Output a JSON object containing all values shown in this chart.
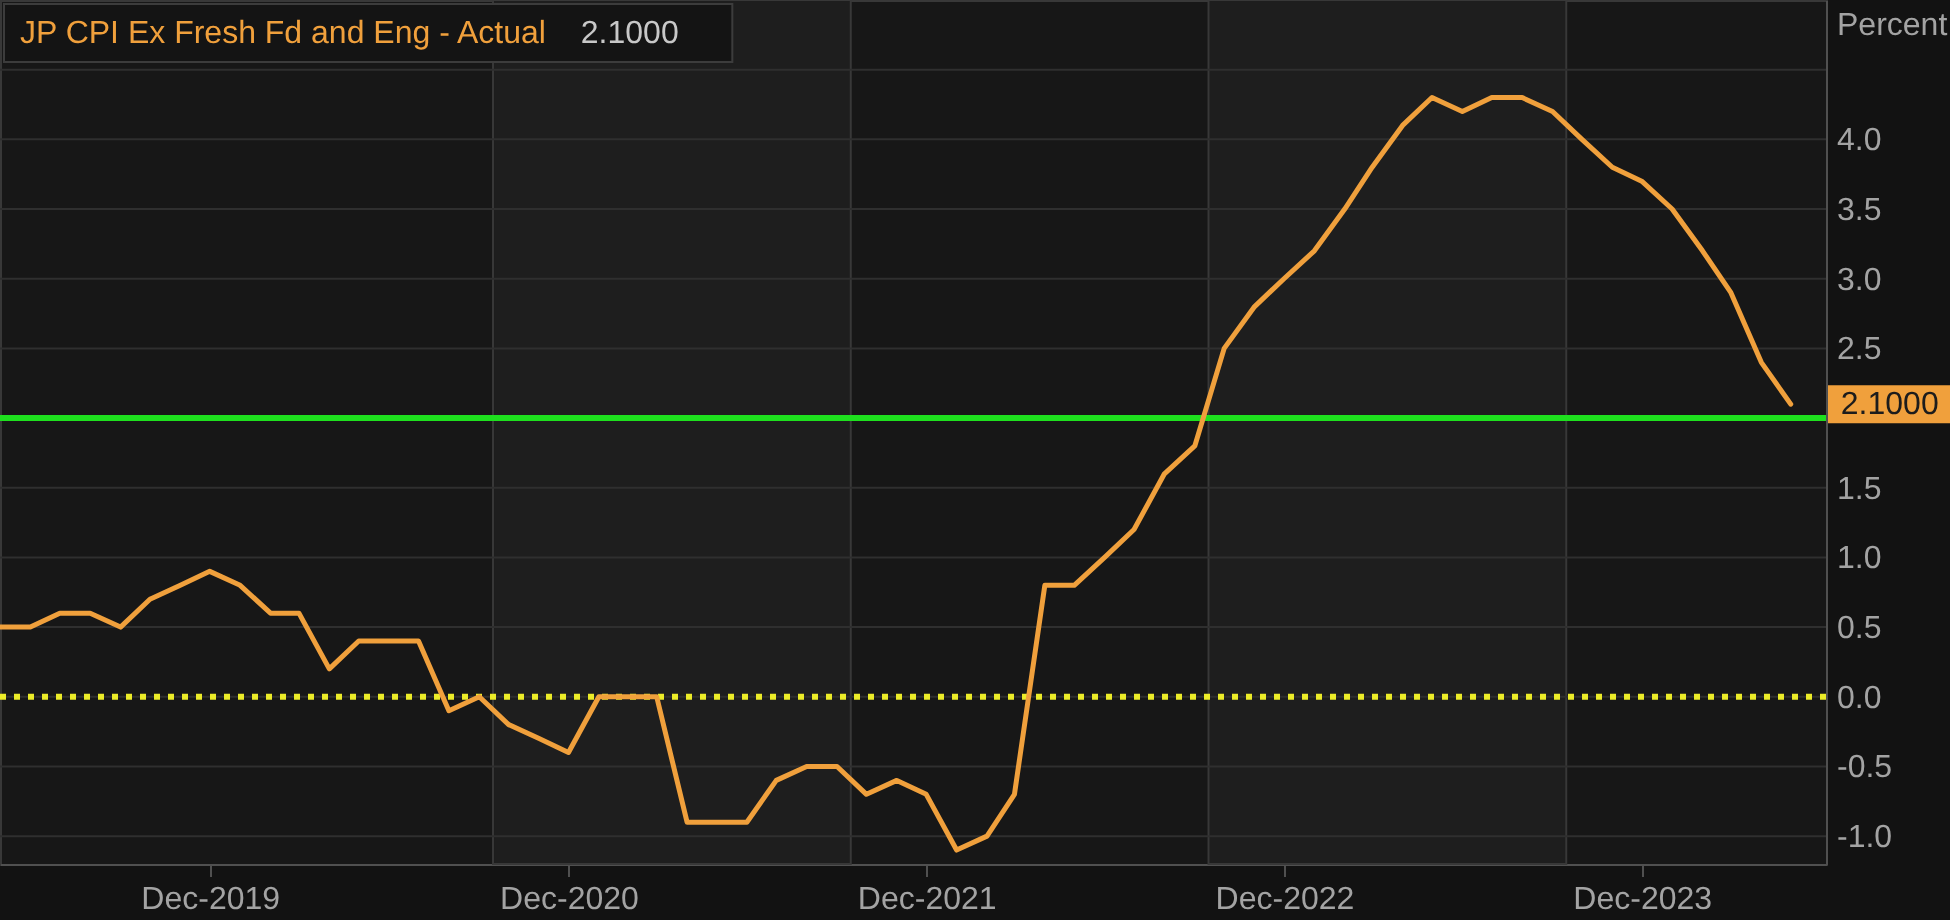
{
  "chart_data": {
    "type": "line",
    "ylabel": "Percent",
    "x": [
      "2019-05",
      "2019-06",
      "2019-07",
      "2019-08",
      "2019-09",
      "2019-10",
      "2019-11",
      "2019-12",
      "2020-01",
      "2020-02",
      "2020-03",
      "2020-04",
      "2020-05",
      "2020-06",
      "2020-07",
      "2020-08",
      "2020-09",
      "2020-10",
      "2020-11",
      "2020-12",
      "2021-01",
      "2021-02",
      "2021-03",
      "2021-04",
      "2021-05",
      "2021-06",
      "2021-07",
      "2021-08",
      "2021-09",
      "2021-10",
      "2021-11",
      "2021-12",
      "2022-01",
      "2022-02",
      "2022-03",
      "2022-04",
      "2022-05",
      "2022-06",
      "2022-07",
      "2022-08",
      "2022-09",
      "2022-10",
      "2022-11",
      "2022-12",
      "2023-01",
      "2023-02",
      "2023-03",
      "2023-04",
      "2023-05",
      "2023-06",
      "2023-07",
      "2023-08",
      "2023-09",
      "2023-10",
      "2023-11",
      "2023-12",
      "2024-01",
      "2024-02",
      "2024-03",
      "2024-04",
      "2024-05"
    ],
    "series": [
      {
        "name": "JP CPI Ex Fresh Fd and Eng - Actual",
        "color": "#f0a03c",
        "values": [
          0.5,
          0.5,
          0.6,
          0.6,
          0.5,
          0.7,
          0.8,
          0.9,
          0.8,
          0.6,
          0.6,
          0.2,
          0.4,
          0.4,
          0.4,
          -0.1,
          0.0,
          -0.2,
          -0.3,
          -0.4,
          0.0,
          0.0,
          0.0,
          -0.9,
          -0.9,
          -0.9,
          -0.6,
          -0.5,
          -0.5,
          -0.7,
          -0.6,
          -0.7,
          -1.1,
          -1.0,
          -0.7,
          0.8,
          0.8,
          1.0,
          1.2,
          1.6,
          1.8,
          2.5,
          2.8,
          3.0,
          3.2,
          3.5,
          3.8,
          4.1,
          4.3,
          4.2,
          4.3,
          4.3,
          4.2,
          4.0,
          3.8,
          3.7,
          3.5,
          3.2,
          2.9,
          2.4,
          2.1
        ],
        "value_labels": [
          null,
          null,
          null,
          null,
          null,
          null,
          null,
          null,
          null,
          null,
          null,
          null,
          null,
          null,
          null,
          null,
          null,
          null,
          null,
          null,
          null,
          null,
          null,
          null,
          null,
          null,
          null,
          null,
          null,
          null,
          null,
          null,
          null,
          null,
          null,
          null,
          null,
          null,
          null,
          null,
          null,
          null,
          null,
          null,
          null,
          null,
          null,
          null,
          null,
          null,
          null,
          null,
          null,
          null,
          null,
          null,
          null,
          null,
          null,
          null,
          "2.1000"
        ]
      }
    ],
    "xlim": [
      "2019-05",
      "2024-06-06"
    ],
    "xticks": [
      {
        "value": "2019-12",
        "label": "Dec-2019"
      },
      {
        "value": "2020-12",
        "label": "Dec-2020"
      },
      {
        "value": "2021-12",
        "label": "Dec-2021"
      },
      {
        "value": "2022-12",
        "label": "Dec-2022"
      },
      {
        "value": "2023-12",
        "label": "Dec-2023"
      }
    ],
    "ylim": [
      -1.2,
      5.0
    ],
    "yticks": [
      {
        "value": -1.0,
        "label": "-1.0"
      },
      -0.5,
      {
        "value": 0,
        "label": "0.0"
      },
      0.5,
      {
        "value": 1,
        "label": "1.0"
      },
      1.5,
      {
        "value": 2,
        "label": null
      },
      2.5,
      {
        "value": 3,
        "label": "3.0"
      },
      3.5,
      {
        "value": 4,
        "label": "4.0"
      },
      {
        "value": 4.5,
        "label": null
      }
    ],
    "ref_lines": [
      {
        "axis": "y",
        "value": 2.0,
        "color": "#1ee01e",
        "line_style": "solid"
      },
      {
        "axis": "y",
        "value": 0,
        "color": "#ecec28",
        "line_style": "dotted"
      }
    ],
    "bands": [
      {
        "axis": "x",
        "from": "2020-09-15",
        "to": "2021-09-15",
        "color": "#1e1e1e"
      },
      {
        "axis": "x",
        "from": "2022-09-15",
        "to": "2023-09-15",
        "color": "#1e1e1e"
      }
    ],
    "grid": "y",
    "legend": "top left"
  }
}
